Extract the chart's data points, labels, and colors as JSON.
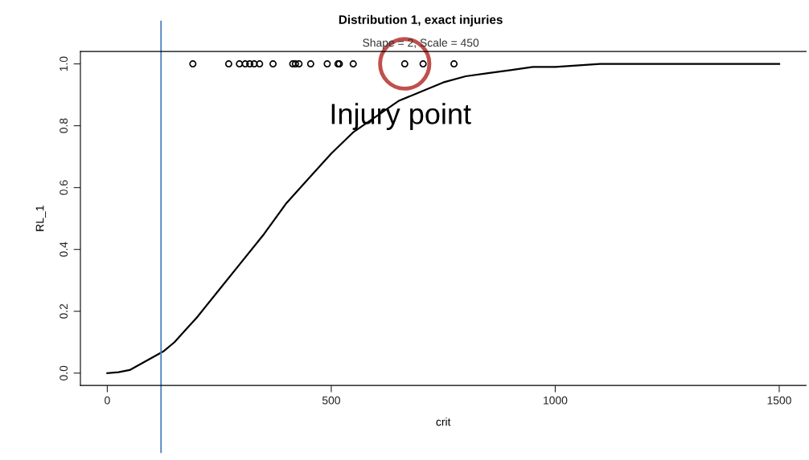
{
  "chart_data": {
    "type": "line",
    "title": "Distribution 1, exact injuries",
    "subtitle": "Shape = 2, Scale = 450",
    "xlabel": "crit",
    "ylabel": "RL_1",
    "series": [
      {
        "color": "#000000",
        "marker": "none",
        "x": [
          0,
          25,
          50,
          75,
          100,
          125,
          150,
          175,
          200,
          250,
          300,
          350,
          400,
          450,
          500,
          550,
          600,
          650,
          700,
          750,
          800,
          850,
          900,
          950,
          1000,
          1100,
          1200,
          1500
        ],
        "values": [
          0.0,
          0.003,
          0.01,
          0.03,
          0.05,
          0.07,
          0.1,
          0.14,
          0.18,
          0.27,
          0.36,
          0.45,
          0.55,
          0.63,
          0.71,
          0.78,
          0.83,
          0.88,
          0.91,
          0.94,
          0.96,
          0.97,
          0.98,
          0.99,
          0.99,
          1.0,
          1.0,
          1.0
        ]
      },
      {
        "type": "scatter",
        "color": "#000000",
        "marker": "circle",
        "x": [
          191,
          271,
          295,
          308,
          318,
          328,
          340,
          370,
          414,
          420,
          428,
          454,
          491,
          515,
          518,
          549,
          664,
          705,
          774
        ],
        "values": [
          1,
          1,
          1,
          1,
          1,
          1,
          1,
          1,
          1,
          1,
          1,
          1,
          1,
          1,
          1,
          1,
          1,
          1,
          1
        ]
      }
    ],
    "xlim": [
      -60,
      1560
    ],
    "ylim": [
      -0.04,
      1.04
    ],
    "xticks": [
      0,
      500,
      1000,
      1500
    ],
    "yticks": [
      {
        "value": 0,
        "label": "0.0"
      },
      {
        "value": 0.2,
        "label": "0.2"
      },
      {
        "value": 0.4,
        "label": "0.4"
      },
      {
        "value": 0.6,
        "label": "0.6"
      },
      {
        "value": 0.8,
        "label": "0.8"
      },
      {
        "value": 1,
        "label": "1.0"
      }
    ],
    "ref_lines": [
      {
        "axis": "x",
        "value": 120,
        "color": "#4a7ebb"
      }
    ],
    "annotations": [
      {
        "text": "Injury point",
        "x": 664,
        "y": 1.0
      }
    ],
    "grid": false,
    "legend": false
  }
}
